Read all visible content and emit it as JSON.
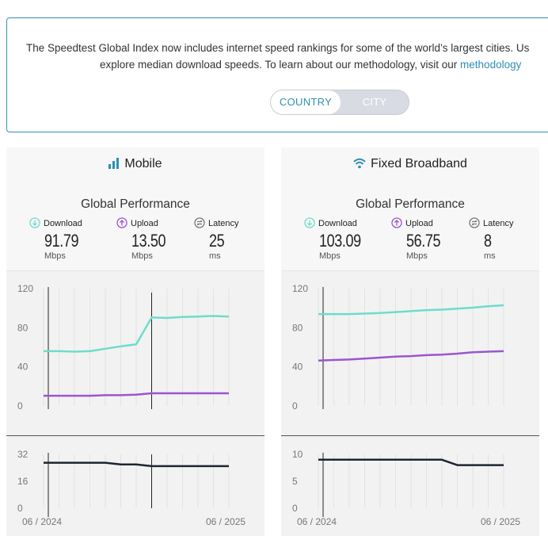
{
  "intro": {
    "line1": "The Speedtest Global Index now includes internet speed rankings for some of the world’s largest cities. Us",
    "line2_prefix": "explore median download speeds. To learn about our methodology, visit our ",
    "line2_link": "methodology"
  },
  "toggle": {
    "country": "COUNTRY",
    "city": "CITY",
    "selected": "COUNTRY"
  },
  "colors": {
    "download": "#6fdccb",
    "upload": "#9b55d1",
    "latency": "#1e2532",
    "accent": "#2e8fb4"
  },
  "panels": {
    "mobile": {
      "title": "Mobile",
      "icon": "signal-bars-icon",
      "subtitle": "Global Performance",
      "download": {
        "label": "Download",
        "value": "91.79",
        "unit": "Mbps"
      },
      "upload": {
        "label": "Upload",
        "value": "13.50",
        "unit": "Mbps"
      },
      "latency": {
        "label": "Latency",
        "value": "25",
        "unit": "ms"
      },
      "date_start": "06 / 2024",
      "date_end": "06 / 2025"
    },
    "fixed": {
      "title": "Fixed Broadband",
      "icon": "wifi-icon",
      "subtitle": "Global Performance",
      "download": {
        "label": "Download",
        "value": "103.09",
        "unit": "Mbps"
      },
      "upload": {
        "label": "Upload",
        "value": "56.75",
        "unit": "Mbps"
      },
      "latency": {
        "label": "Latency",
        "value": "8",
        "unit": "ms"
      },
      "date_start": "06 / 2024",
      "date_end": "06 / 2025"
    }
  },
  "chart_data": [
    {
      "type": "line",
      "panel": "mobile",
      "chart": "speed",
      "x": [
        "06/2024",
        "07/2024",
        "08/2024",
        "09/2024",
        "10/2024",
        "11/2024",
        "12/2024",
        "01/2025",
        "02/2025",
        "03/2025",
        "04/2025",
        "05/2025",
        "06/2025"
      ],
      "series": [
        {
          "name": "Download",
          "values": [
            56,
            56,
            55.5,
            56,
            58.5,
            61,
            63,
            90.5,
            90,
            91,
            91.5,
            92,
            91.5
          ]
        },
        {
          "name": "Upload",
          "values": [
            10.5,
            10.5,
            10.5,
            10.5,
            11,
            11,
            11.5,
            13,
            13,
            13,
            13,
            13,
            13
          ]
        }
      ],
      "yticks": [
        0,
        40,
        80,
        120
      ],
      "ylim": [
        0,
        120
      ],
      "marker_index": 7
    },
    {
      "type": "line",
      "panel": "mobile",
      "chart": "latency",
      "x": [
        "06/2024",
        "07/2024",
        "08/2024",
        "09/2024",
        "10/2024",
        "11/2024",
        "12/2024",
        "01/2025",
        "02/2025",
        "03/2025",
        "04/2025",
        "05/2025",
        "06/2025"
      ],
      "series": [
        {
          "name": "Latency",
          "values": [
            27,
            27,
            27,
            27,
            27,
            26,
            26,
            25,
            25,
            25,
            25,
            25,
            25
          ]
        }
      ],
      "yticks": [
        0,
        16,
        32
      ],
      "ylim": [
        0,
        32
      ],
      "marker_index": 7
    },
    {
      "type": "line",
      "panel": "fixed",
      "chart": "speed",
      "x": [
        "06/2024",
        "07/2024",
        "08/2024",
        "09/2024",
        "10/2024",
        "11/2024",
        "12/2024",
        "01/2025",
        "02/2025",
        "03/2025",
        "04/2025",
        "05/2025",
        "06/2025"
      ],
      "series": [
        {
          "name": "Download",
          "values": [
            94,
            94,
            94,
            94.5,
            95,
            96,
            97,
            98,
            98.5,
            99.5,
            100.5,
            102,
            103
          ]
        },
        {
          "name": "Upload",
          "values": [
            46.5,
            47,
            47.5,
            48.5,
            49.5,
            50.5,
            51,
            52,
            52.5,
            53.5,
            55,
            55.5,
            56
          ]
        }
      ],
      "yticks": [
        0,
        40,
        80,
        120
      ],
      "ylim": [
        0,
        120
      ],
      "marker_index": 0
    },
    {
      "type": "line",
      "panel": "fixed",
      "chart": "latency",
      "x": [
        "06/2024",
        "07/2024",
        "08/2024",
        "09/2024",
        "10/2024",
        "11/2024",
        "12/2024",
        "01/2025",
        "02/2025",
        "03/2025",
        "04/2025",
        "05/2025",
        "06/2025"
      ],
      "series": [
        {
          "name": "Latency",
          "values": [
            9,
            9,
            9,
            9,
            9,
            9,
            9,
            9,
            9,
            8,
            8,
            8,
            8
          ]
        }
      ],
      "yticks": [
        0,
        5,
        10
      ],
      "ylim": [
        0,
        10
      ],
      "marker_index": 0
    }
  ]
}
